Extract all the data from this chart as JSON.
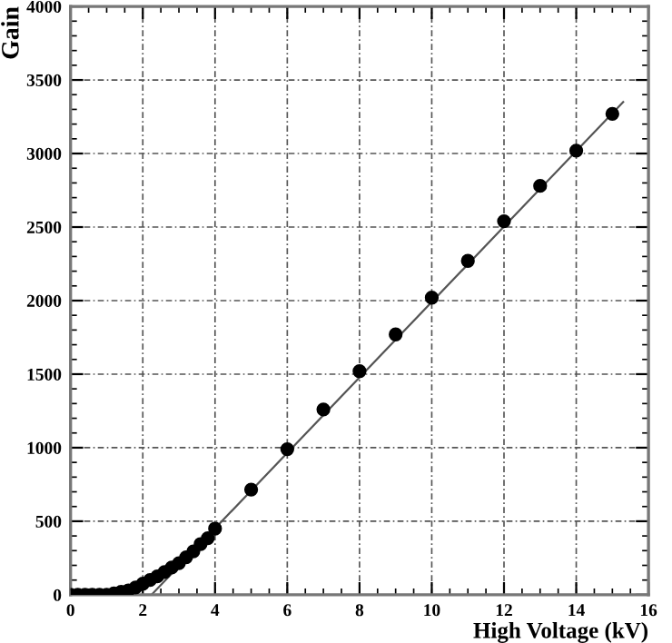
{
  "chart_data": {
    "type": "scatter",
    "xlabel": "High Voltage (kV)",
    "ylabel": "Gain",
    "xlim": [
      0,
      16
    ],
    "ylim": [
      0,
      4000
    ],
    "xticks": [
      0,
      2,
      4,
      6,
      8,
      10,
      12,
      14,
      16
    ],
    "yticks": [
      0,
      500,
      1000,
      1500,
      2000,
      2500,
      3000,
      3500,
      4000
    ],
    "grid": true,
    "marker": "circle",
    "series": [
      {
        "color": "#000000",
        "x": [
          0,
          0.2,
          0.4,
          0.6,
          0.8,
          1.0,
          1.2,
          1.4,
          1.6,
          1.8,
          2.0,
          2.2,
          2.4,
          2.6,
          2.8,
          3.0,
          3.2,
          3.4,
          3.6,
          3.8,
          4.0,
          5,
          6,
          7,
          8,
          9,
          10,
          11,
          12,
          13,
          14,
          15
        ],
        "values": [
          0,
          0,
          0,
          0,
          0,
          0,
          10,
          20,
          30,
          50,
          75,
          100,
          125,
          155,
          185,
          215,
          255,
          295,
          345,
          385,
          450,
          715,
          990,
          1260,
          1520,
          1770,
          2020,
          2270,
          2540,
          2780,
          3020,
          3270
        ]
      },
      {
        "type": "line",
        "color": "#555555",
        "x": [
          2.24,
          15.3
        ],
        "values": [
          0,
          3350
        ],
        "marker": "none"
      }
    ]
  }
}
